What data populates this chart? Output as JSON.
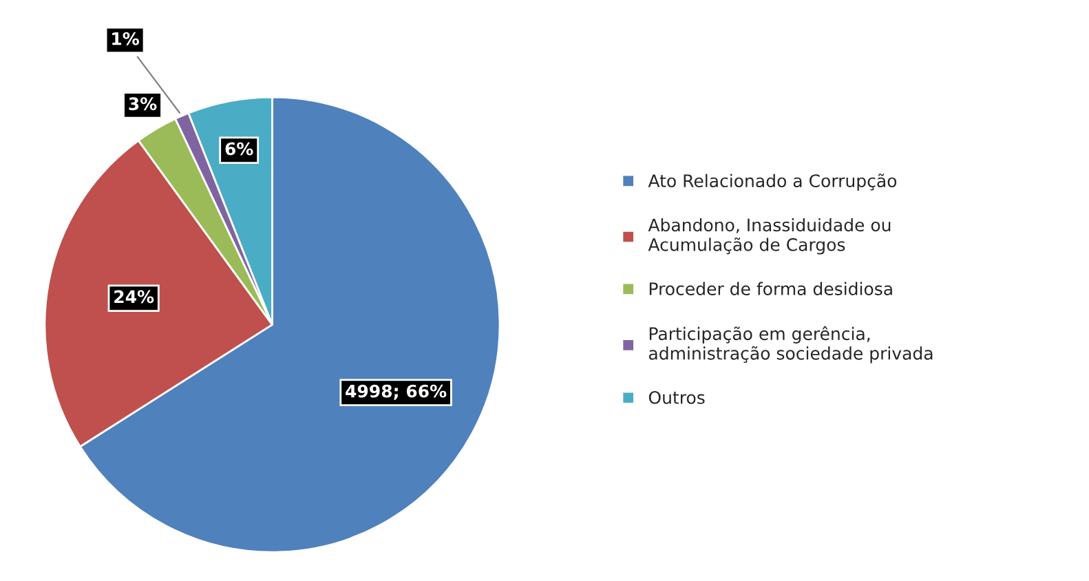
{
  "chart_data": {
    "type": "pie",
    "categories": [
      "Ato Relacionado a Corrupção",
      "Abandono, Inassiduidade ou\nAcumulação de Cargos",
      "Proceder de forma desidiosa",
      "Participação em gerência,\nadministração sociedade privada",
      "Outros"
    ],
    "values": [
      66,
      24,
      3,
      1,
      6
    ],
    "value_labels": [
      "4998; 66%",
      "24%",
      "3%",
      "1%",
      "6%"
    ],
    "colors": [
      "#4f81bd",
      "#c0504d",
      "#9bbb59",
      "#8064a2",
      "#4bacc6"
    ],
    "legend": "right"
  }
}
